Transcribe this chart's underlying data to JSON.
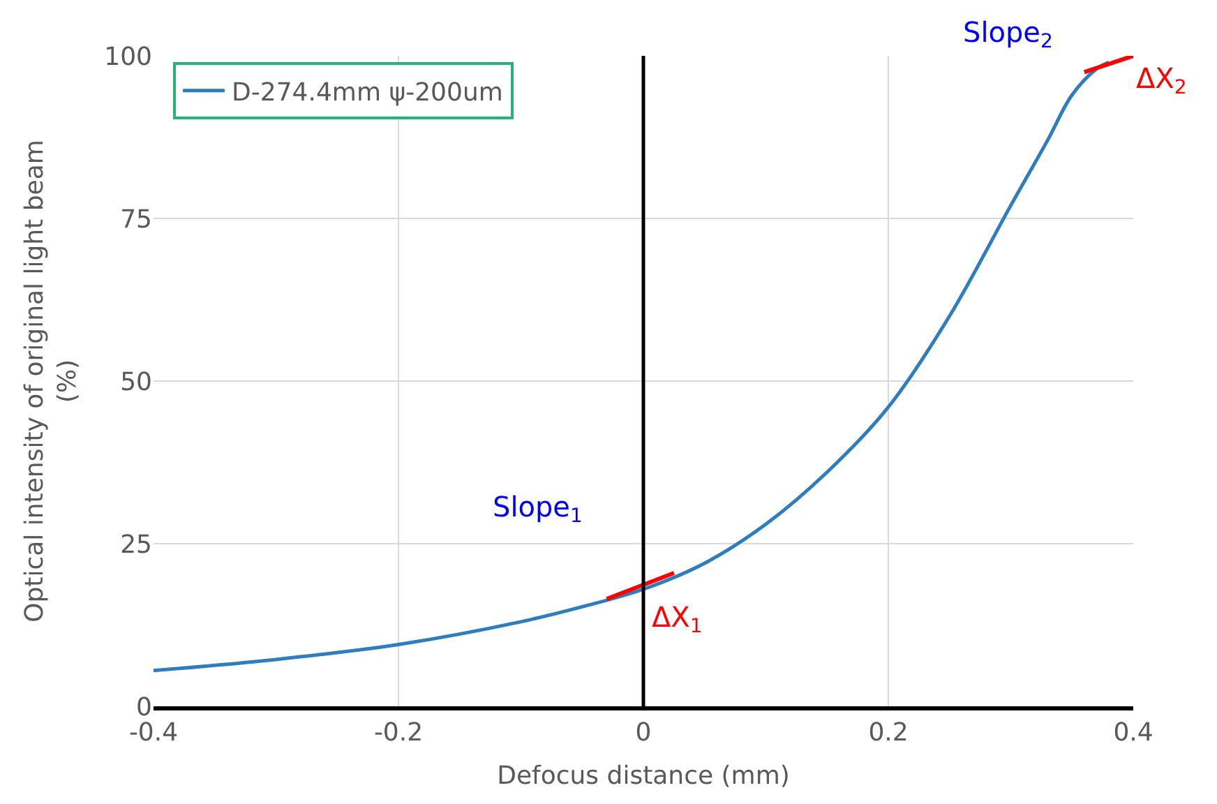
{
  "chart_data": {
    "type": "line",
    "xlabel": "Defocus distance (mm)",
    "ylabel": "Optical intensity of original light beam (%)",
    "series": [
      {
        "name": "D-274.4mm ψ-200um",
        "color": "#2e7dc0",
        "x": [
          -0.4,
          -0.3,
          -0.2,
          -0.1,
          -0.05,
          0,
          0.05,
          0.1,
          0.15,
          0.2,
          0.25,
          0.3,
          0.33,
          0.35,
          0.37,
          0.38
        ],
        "values": [
          5.5,
          7.2,
          9.5,
          13,
          15.3,
          18,
          22,
          28,
          36,
          46,
          60,
          77,
          87,
          94,
          98,
          99
        ]
      },
      {
        "color": "#ff0000",
        "x": [
          -0.03,
          0.025
        ],
        "values": [
          16.5,
          20.5
        ]
      },
      {
        "color": "#ff0000",
        "x": [
          0.36,
          0.4
        ],
        "values": [
          97.5,
          100
        ]
      }
    ],
    "annotations": [
      "Slope$_{1}$",
      "ΔX$_{1}$",
      "Slope$_{2}$",
      "ΔX$_{2}$"
    ],
    "ref_lines": [
      {
        "axis": "x",
        "value": 0,
        "color": "#000000"
      }
    ],
    "xlim": [
      -0.4,
      0.4
    ],
    "xticks": [
      -0.4,
      -0.2,
      0,
      0.2,
      0.4
    ],
    "ylim": [
      0,
      100
    ],
    "yticks": [
      0,
      25,
      50,
      75,
      100
    ],
    "grid": true,
    "legend": "top left",
    "marker": "none",
    "line_style": "solid"
  }
}
